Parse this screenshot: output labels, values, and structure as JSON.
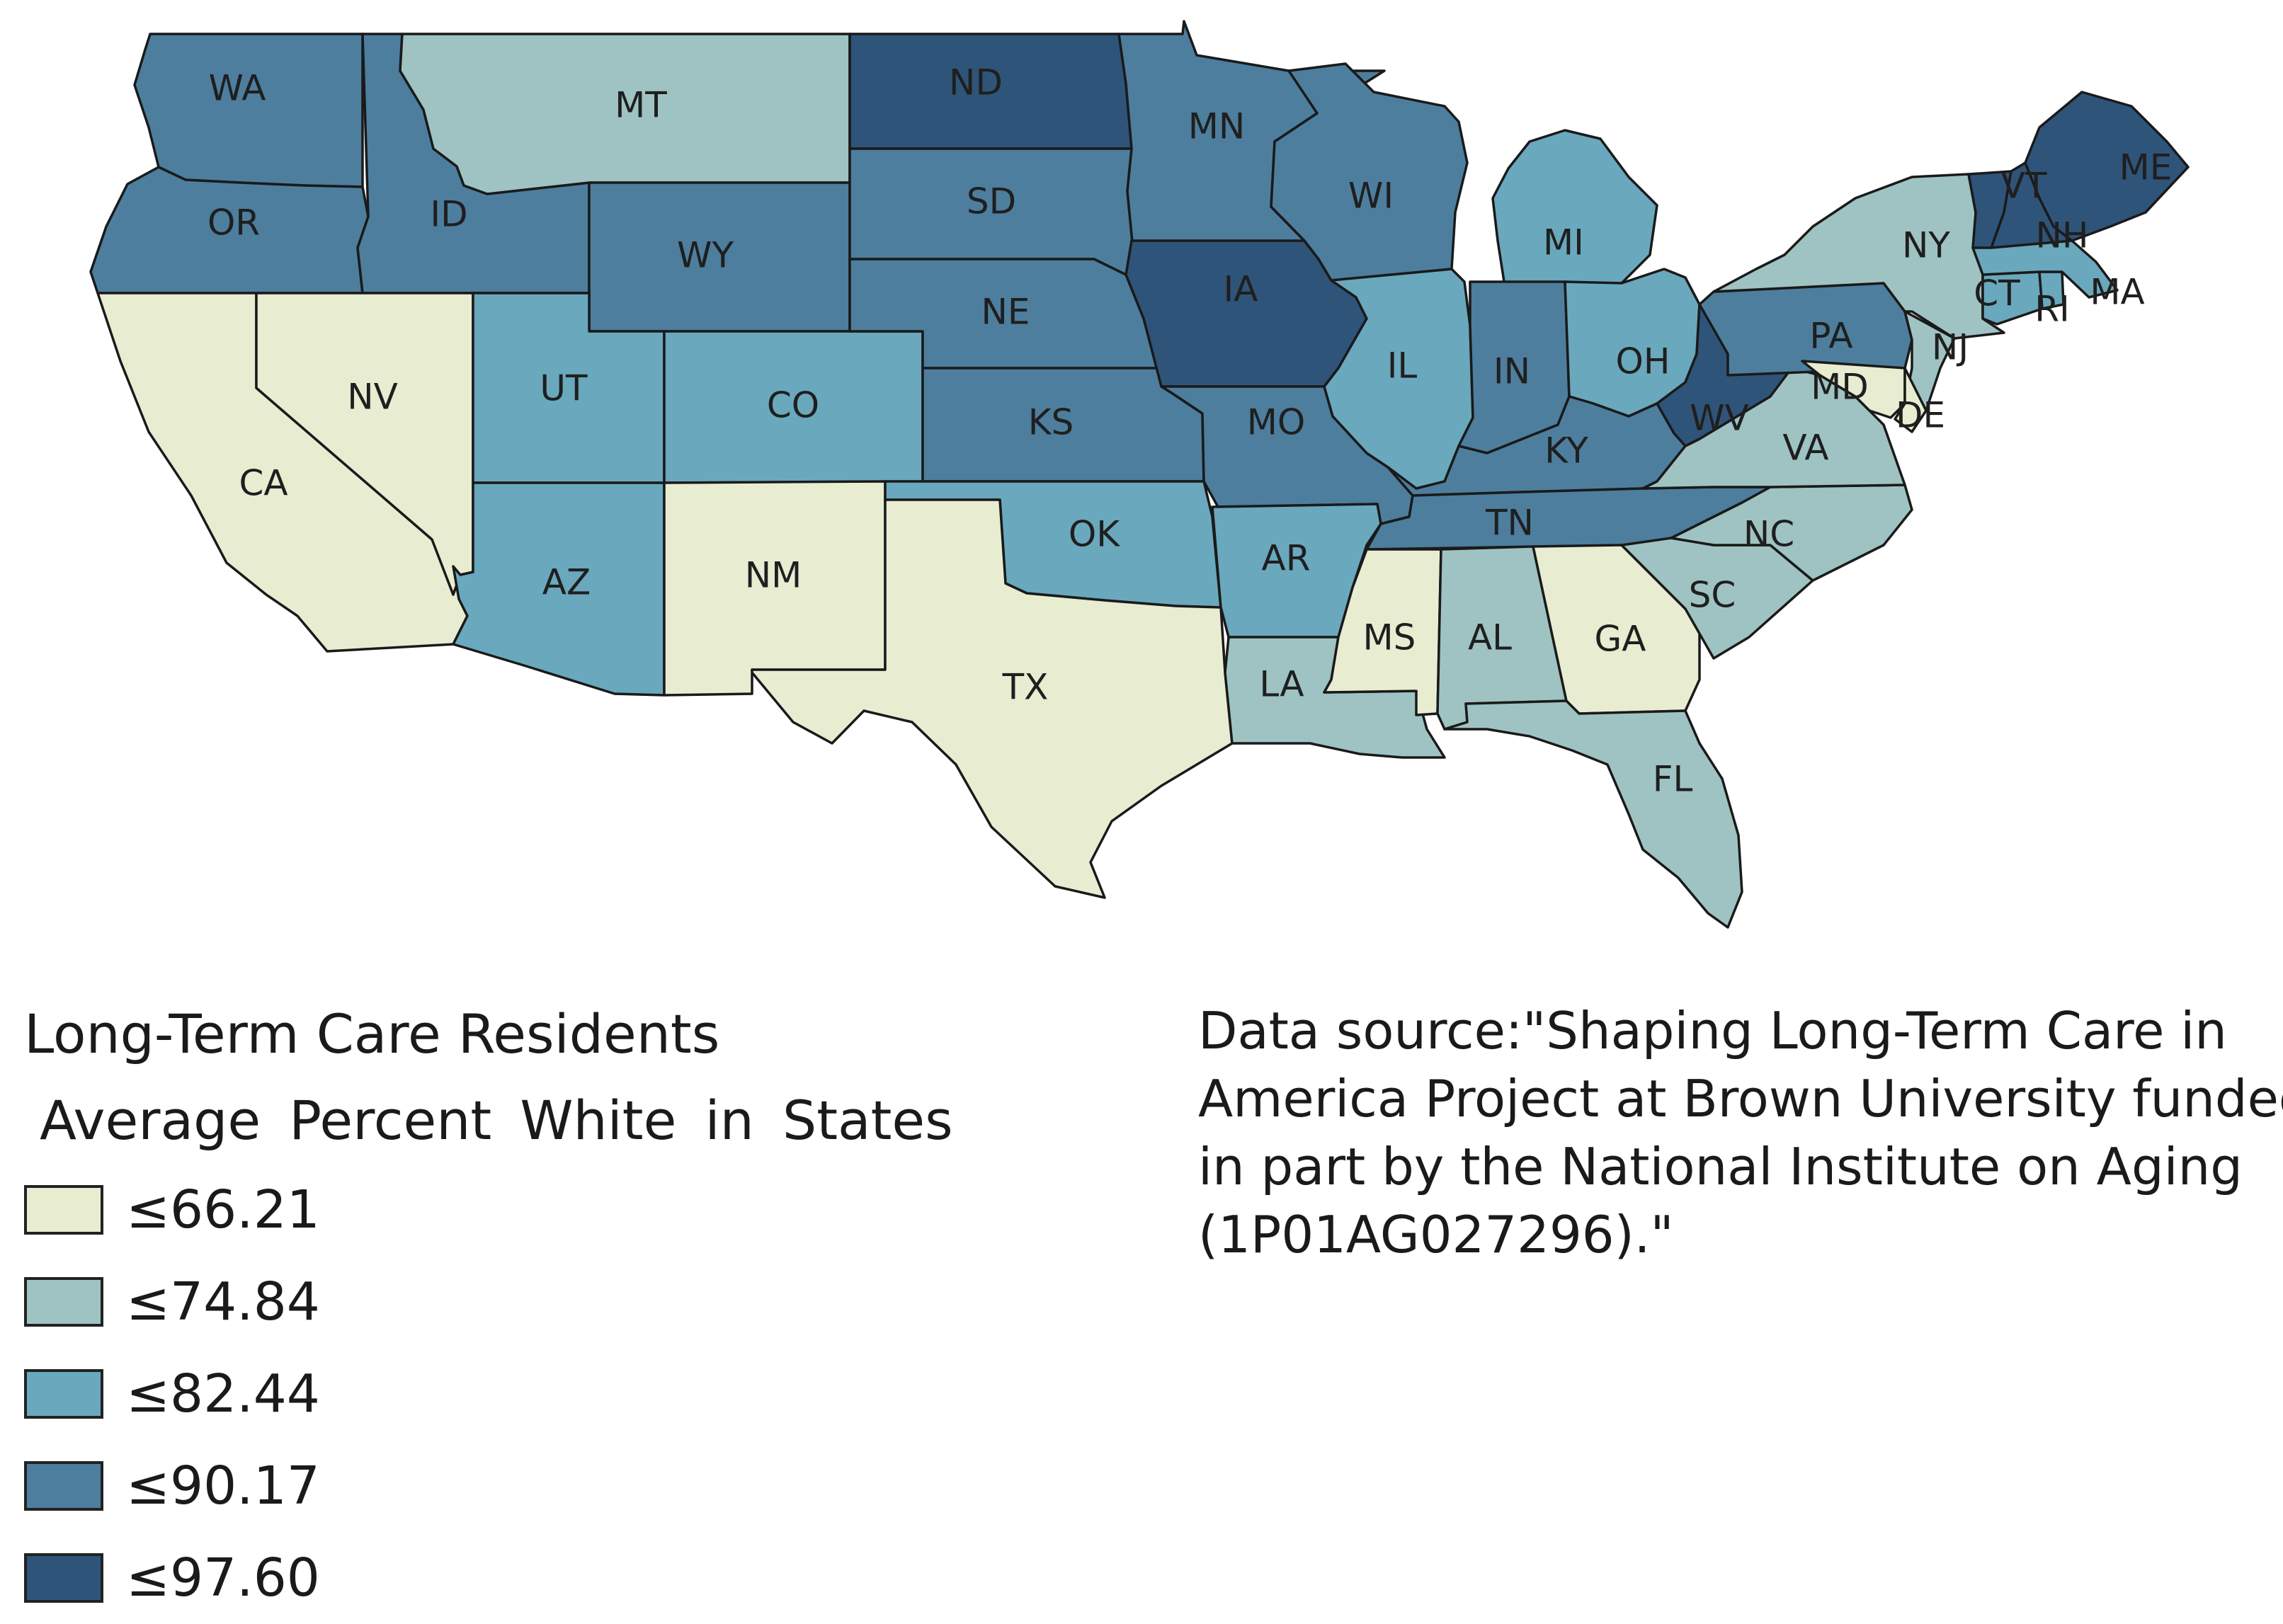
{
  "legend": {
    "title_line1": "Long-Term Care Residents",
    "title_line2": "Average  Percent  White  in States",
    "classes": [
      {
        "label": "≤66.21",
        "upper": 66.21,
        "color": "#e8edd2"
      },
      {
        "label": "≤74.84",
        "upper": 74.84,
        "color": "#9fc3c2"
      },
      {
        "label": "≤82.44",
        "upper": 82.44,
        "color": "#6aa8bd"
      },
      {
        "label": "≤90.17",
        "upper": 90.17,
        "color": "#4d7e9e"
      },
      {
        "label": "≤97.60",
        "upper": 97.6,
        "color": "#2f5479"
      }
    ]
  },
  "source_note": {
    "lines": [
      "Data source:\"Shaping Long-Term Care in",
      "America Project at Brown University funded",
      "in part by the National Institute on Aging",
      "(1P01AG027296).\""
    ]
  },
  "states": [
    {
      "abbr": "WA",
      "class": 3
    },
    {
      "abbr": "OR",
      "class": 3
    },
    {
      "abbr": "CA",
      "class": 0
    },
    {
      "abbr": "ID",
      "class": 3
    },
    {
      "abbr": "NV",
      "class": 0
    },
    {
      "abbr": "MT",
      "class": 1
    },
    {
      "abbr": "WY",
      "class": 3
    },
    {
      "abbr": "UT",
      "class": 2
    },
    {
      "abbr": "CO",
      "class": 2
    },
    {
      "abbr": "AZ",
      "class": 2
    },
    {
      "abbr": "NM",
      "class": 0
    },
    {
      "abbr": "ND",
      "class": 4
    },
    {
      "abbr": "SD",
      "class": 3
    },
    {
      "abbr": "NE",
      "class": 3
    },
    {
      "abbr": "KS",
      "class": 3
    },
    {
      "abbr": "OK",
      "class": 2
    },
    {
      "abbr": "TX",
      "class": 0
    },
    {
      "abbr": "MN",
      "class": 3
    },
    {
      "abbr": "IA",
      "class": 4
    },
    {
      "abbr": "MO",
      "class": 3
    },
    {
      "abbr": "AR",
      "class": 2
    },
    {
      "abbr": "LA",
      "class": 1
    },
    {
      "abbr": "WI",
      "class": 3
    },
    {
      "abbr": "IL",
      "class": 2
    },
    {
      "abbr": "MI",
      "class": 2
    },
    {
      "abbr": "IN",
      "class": 3
    },
    {
      "abbr": "OH",
      "class": 2
    },
    {
      "abbr": "KY",
      "class": 3
    },
    {
      "abbr": "TN",
      "class": 3
    },
    {
      "abbr": "MS",
      "class": 0
    },
    {
      "abbr": "AL",
      "class": 1
    },
    {
      "abbr": "GA",
      "class": 0
    },
    {
      "abbr": "FL",
      "class": 1
    },
    {
      "abbr": "SC",
      "class": 1
    },
    {
      "abbr": "NC",
      "class": 1
    },
    {
      "abbr": "VA",
      "class": 1
    },
    {
      "abbr": "WV",
      "class": 4
    },
    {
      "abbr": "PA",
      "class": 3
    },
    {
      "abbr": "NY",
      "class": 1
    },
    {
      "abbr": "NJ",
      "class": 1
    },
    {
      "abbr": "MD",
      "class": 0
    },
    {
      "abbr": "DE",
      "class": 0
    },
    {
      "abbr": "CT",
      "class": 2
    },
    {
      "abbr": "RI",
      "class": 2
    },
    {
      "abbr": "MA",
      "class": 2
    },
    {
      "abbr": "VT",
      "class": 4
    },
    {
      "abbr": "NH",
      "class": 4
    },
    {
      "abbr": "ME",
      "class": 4
    }
  ]
}
